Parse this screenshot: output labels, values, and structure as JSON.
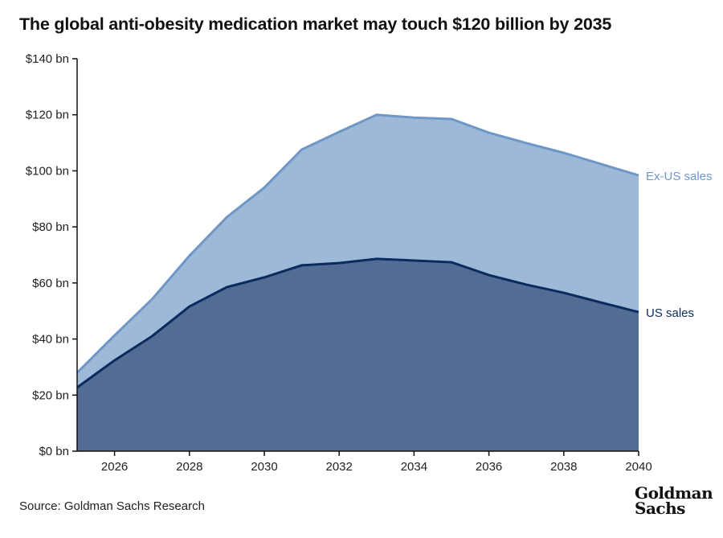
{
  "chart_data": {
    "type": "area",
    "stacked": true,
    "title": "The global anti-obesity medication market may touch $120 billion by 2035",
    "xlabel": "",
    "ylabel": "",
    "x": [
      2025,
      2026,
      2027,
      2028,
      2029,
      2030,
      2031,
      2032,
      2033,
      2034,
      2035,
      2036,
      2037,
      2038,
      2039,
      2040
    ],
    "xlim": [
      2025,
      2040
    ],
    "ylim": [
      0,
      140
    ],
    "x_ticks": [
      "2026",
      "2028",
      "2030",
      "2032",
      "2034",
      "2036",
      "2038",
      "2040"
    ],
    "y_ticks": [
      "$0 bn",
      "$20 bn",
      "$40 bn",
      "$60 bn",
      "$80 bn",
      "$100 bn",
      "$120 bn",
      "$140 bn"
    ],
    "grid": false,
    "legend": "inline-right",
    "series": [
      {
        "name": "US sales",
        "color": "#0b2a5e",
        "fill": "#536c93",
        "values": [
          22.7,
          32.4,
          41.0,
          51.6,
          58.5,
          62.0,
          66.3,
          67.1,
          68.6,
          68.0,
          67.4,
          62.8,
          59.4,
          56.5,
          53.0,
          49.6
        ]
      },
      {
        "name": "Ex-US sales",
        "color": "#6f97c6",
        "fill": "#9eb8d7",
        "values": [
          5.3,
          8.9,
          13.2,
          18.1,
          25.0,
          32.0,
          41.3,
          46.8,
          51.4,
          51.0,
          51.1,
          50.8,
          50.5,
          49.9,
          49.4,
          48.8
        ]
      }
    ]
  },
  "source": "Source: Goldman Sachs Research",
  "logo": {
    "line1": "Goldman",
    "line2": "Sachs"
  }
}
